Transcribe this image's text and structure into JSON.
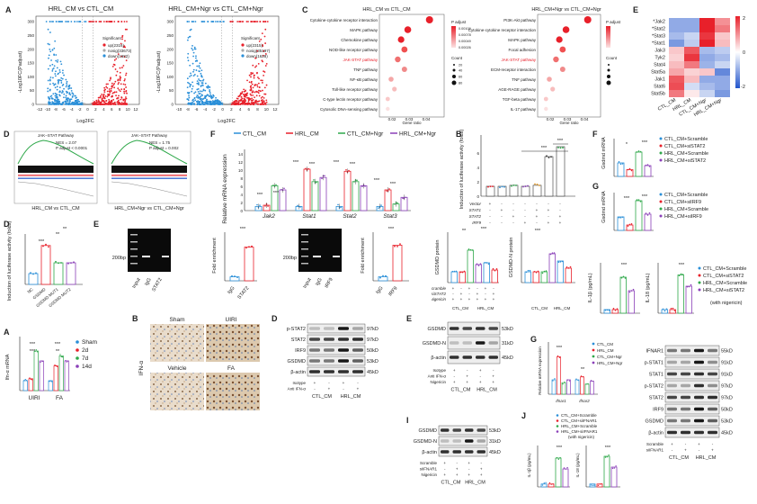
{
  "panel_labels": {
    "A": "A",
    "B": "B",
    "C": "C",
    "D": "D",
    "E": "E",
    "F": "F",
    "G": "G",
    "H": "H",
    "I": "I",
    "J": "J",
    "L": "L"
  },
  "colors": {
    "red": "#e8202a",
    "blue": "#2a8fd8",
    "green": "#2ea84a",
    "purple": "#8a3fb8",
    "gray": "#999999"
  },
  "volcano": {
    "left_title": "HRL_CM vs CTL_CM",
    "right_title": "HRL_CM+Ngr vs CTL_CM+Ngr",
    "ylabel": "-Log10FC(Padjust)",
    "xlabel": "Log2FC",
    "yticks": [
      "0",
      "50",
      "100",
      "150",
      "200",
      "250",
      "300"
    ],
    "xticks_left": [
      "-12",
      "-10",
      "-8",
      "-6",
      "-4",
      "-2",
      "0",
      "2",
      "4",
      "6",
      "8",
      "10",
      "12"
    ],
    "xticks_right": [
      "-10",
      "-8",
      "-6",
      "-4",
      "-2",
      "0",
      "2",
      "4",
      "6",
      "8",
      "10",
      "12"
    ],
    "legend_title": "Significant",
    "legend_left": [
      "up(2316)",
      "nosig(33673)",
      "down(1682)"
    ],
    "legend_right": [
      "up(2315)",
      "nosig(35197)",
      "down(1628)"
    ]
  },
  "kegg": {
    "left_title": "HRL_CM vs CTL_CM",
    "right_title": "HRL_CM+Ngr vs CTL_CM+Ngr",
    "left_terms": [
      "Cytokine-cytokine receptor interaction",
      "MAPK pathway",
      "Chemokine pathway",
      "NOD-like receptor pathway",
      "JAK-STAT pathway",
      "TNF pathway",
      "NF-κB pathway",
      "Toll-like receptor pathway",
      "C-type lectin receptor pathway",
      "Cytosolic DNA-sensing pathway"
    ],
    "right_terms": [
      "PI3K-Akt pathway",
      "Cytokine-cytokine receptor interaction",
      "MAPK pathway",
      "Focal adhesion",
      "JAK-STAT pathway",
      "ECM-receptor interaction",
      "TNF pathway",
      "AGE-RAGE pathway",
      "TGF-beta pathway",
      "IL-17 pathway"
    ],
    "xlabel": "Gene ratio",
    "xticks": [
      "0.02",
      "0.03",
      "0.04"
    ],
    "padj_label": "P adjust",
    "count_label": "Count",
    "count_values": [
      "20",
      "40",
      "60",
      "80"
    ],
    "padj_values": [
      "0.00109",
      "0.00078",
      "0.00049",
      "0.00026"
    ]
  },
  "heatmap": {
    "genes": [
      "Jak2",
      "Stat2",
      "Stat3",
      "Stat1",
      "Jak3",
      "Tyk2",
      "Stat4",
      "Stat5a",
      "Jak1",
      "Stat6",
      "Stat5b"
    ],
    "starred": [
      "Jak2",
      "Stat2",
      "Stat3",
      "Stat1"
    ],
    "columns": [
      "CTL_CM",
      "HRL_CM",
      "CTL_CM+Ngr",
      "HRL_CM+Ngr"
    ],
    "scale": [
      "2",
      "0",
      "-2"
    ]
  },
  "gsea": {
    "left": {
      "title": "JAK−STAT Pathway",
      "nes": "NES = 2.07",
      "padj": "P adjust < 0.0001",
      "caption": "HRL_CM vs CTL_CM"
    },
    "right": {
      "title": "JAK−STAT Pathway",
      "nes": "NES = 1.75",
      "padj": "P adjust = 0.002",
      "caption": "HRL_CM+Ngr vs CTL_CM+Ngr"
    }
  },
  "mrna_f": {
    "legend": [
      "CTL_CM",
      "HRL_CM",
      "CTL_CM+Ngr",
      "HRL_CM+Ngr"
    ],
    "ylabel": "Relative mRNA expression",
    "genes": [
      "Jak2",
      "Stat1",
      "Stat2",
      "Stat3"
    ],
    "yticks": [
      "0",
      "2",
      "4",
      "6",
      "8",
      "10",
      "12",
      "14"
    ],
    "stars": [
      "***",
      "***",
      "***",
      "***",
      "***",
      "***",
      "***",
      "***",
      "***",
      "**"
    ]
  },
  "luc_b": {
    "ylabel": "Induction of luciferase activity (folds)",
    "rows": [
      {
        "name": "Vector",
        "vals": [
          "+",
          "-",
          "-",
          "-",
          "-",
          "-",
          "-"
        ]
      },
      {
        "name": "STAT1",
        "vals": [
          "-",
          "+",
          "-",
          "-",
          "+",
          "+",
          "-"
        ]
      },
      {
        "name": "STAT2",
        "vals": [
          "-",
          "-",
          "+",
          "-",
          "+",
          "-",
          "+"
        ]
      },
      {
        "name": "IRF9",
        "vals": [
          "-",
          "-",
          "-",
          "+",
          "-",
          "+",
          "+"
        ]
      }
    ],
    "yticks": [
      "0",
      "2",
      "4",
      "6"
    ],
    "stars": [
      "***",
      "***"
    ]
  },
  "gsdmd_fg": {
    "ylabel": "Gsdmd mRNA",
    "legend_f": [
      "CTL_CM+Scramble",
      "CTL_CM+siSTAT2",
      "HRL_CM+Scramble",
      "HRL_CM+siSTAT2"
    ],
    "legend_g": [
      "CTL_CM+Scramble",
      "CTL_CM+siIRF9",
      "HRL_CM+Scramble",
      "HRL_CM+siIRF9"
    ],
    "stars_f": [
      "*",
      "***"
    ],
    "stars_g": [
      "***",
      "***"
    ]
  },
  "luc_d": {
    "ylabel": "Induction of luciferase activity (folds)",
    "categories": [
      "NC",
      "GSDMD",
      "GSDMD MUT1",
      "GSDMD MUT2"
    ],
    "stars": [
      "***",
      "**",
      "**"
    ]
  },
  "chip_e": {
    "ladder": "200bp",
    "lanes1": [
      "Input",
      "IgG",
      "STAT2"
    ],
    "lanes2": [
      "Input",
      "IgG",
      "IRF9"
    ],
    "ylabel": "Fold enrichment",
    "cats1": [
      "IgG",
      "STAT2"
    ],
    "cats2": [
      "IgG",
      "IRF9"
    ],
    "stars": [
      "***",
      "***"
    ]
  },
  "gsdmd_prot": {
    "ylabel1": "GSDMD protein",
    "ylabel2": "GSDMD-N protein",
    "rows": [
      "Scramble",
      "siSTAT2",
      "Nigericin"
    ],
    "groups": [
      "CTL_CM",
      "HRL_CM"
    ],
    "stars1": [
      "**",
      "***"
    ],
    "stars2": [
      "***"
    ]
  },
  "il_l": {
    "ylabel1": "IL-1β (pg/mL)",
    "ylabel2": "IL-18 (pg/mL)",
    "legend": [
      "CTL_CM+Scramble",
      "CTL_CM+siSTAT2",
      "HRL_CM+Scramble",
      "HRL_CM+siSTAT2"
    ],
    "note": "(with nigericin)",
    "stars": [
      "***",
      "***"
    ]
  },
  "ifn_a": {
    "ylabel": "Ifn-α mRNA",
    "legend": [
      "Sham",
      "2d",
      "7d",
      "14d"
    ],
    "groups": [
      "UIRI",
      "FA"
    ],
    "stars": [
      "***",
      "***",
      "***",
      "**"
    ]
  },
  "ihc_b": {
    "labels": [
      "Sham",
      "UIRI",
      "Vehicle",
      "FA"
    ],
    "side": "IFN-α"
  },
  "wb_d": {
    "rows": [
      "p-STAT2",
      "STAT2",
      "IRF9",
      "GSDMD",
      "β-actin"
    ],
    "kd": [
      "97kD",
      "97kD",
      "50kD",
      "53kD",
      "45kD"
    ],
    "treat": [
      "Isotype",
      "Anti IFN-α"
    ],
    "signs": [
      [
        "+",
        "-",
        "+",
        "-"
      ],
      [
        "-",
        "+",
        "-",
        "+"
      ]
    ],
    "groups": [
      "CTL_CM",
      "HRL_CM"
    ]
  },
  "wb_e": {
    "rows": [
      "GSDMD",
      "GSDMD-N",
      "β-actin"
    ],
    "kd": [
      "53kD",
      "31kD",
      "45kD"
    ],
    "treat": [
      "Isotype",
      "Anti IFN-α",
      "Nigericin"
    ],
    "signs": [
      [
        "+",
        "-",
        "+",
        "-"
      ],
      [
        "-",
        "+",
        "-",
        "+"
      ],
      [
        "+",
        "+",
        "+",
        "+"
      ]
    ],
    "groups": [
      "CTL_CM",
      "HRL_CM"
    ]
  },
  "mrna_g": {
    "ylabel": "Relative mRNA expression",
    "legend": [
      "CTL_CM",
      "HRL_CM",
      "CTL_CM+Ngr",
      "HRL_CM+Ngr"
    ],
    "genes": [
      "Ifnar1",
      "Ifnar2"
    ],
    "stars": [
      "***",
      "**"
    ]
  },
  "wb_i": {
    "rows": [
      "GSDMD",
      "GSDMD-N",
      "β-actin"
    ],
    "kd": [
      "53kD",
      "31kD",
      "45kD"
    ],
    "treat": [
      "Scramble",
      "siIFNAR1",
      "Nigericin"
    ],
    "groups": [
      "CTL_CM",
      "HRL_CM"
    ]
  },
  "il_j": {
    "ylabel1": "IL-1β (pg/mL)",
    "ylabel2": "IL-18 (pg/mL)",
    "legend": [
      "CTL_CM+Scramble",
      "CTL_CM+siIFNAR1",
      "HRL_CM+Scramble",
      "HRL_CM+siIFNAR1"
    ],
    "note": "(with nigericin)",
    "stars": [
      "***",
      "***"
    ]
  },
  "wb_h": {
    "rows": [
      "IFNAR1",
      "p-STAT1",
      "STAT1",
      "p-STAT2",
      "STAT2",
      "IRF9",
      "GSDMD",
      "β-actin"
    ],
    "kd": [
      "55kD",
      "91kD",
      "91kD",
      "97kD",
      "97kD",
      "50kD",
      "53kD",
      "45kD"
    ],
    "treat": [
      "Scramble",
      "siIFNAR1"
    ],
    "signs": [
      [
        "+",
        "-",
        "+",
        "-"
      ],
      [
        "-",
        "+",
        "-",
        "+"
      ]
    ],
    "groups": [
      "CTL_CM",
      "HRL_CM"
    ]
  }
}
